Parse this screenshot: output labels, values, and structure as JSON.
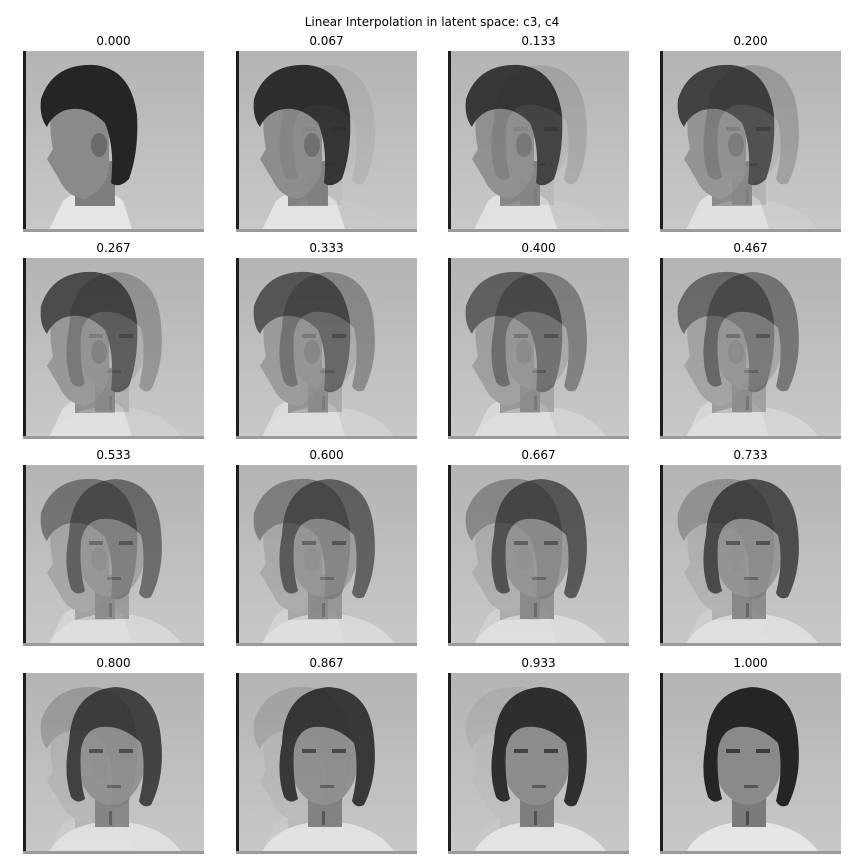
{
  "figure": {
    "title": "Linear Interpolation in latent space: c3, c4",
    "panels": [
      {
        "label": "0.000",
        "alpha": 0.0
      },
      {
        "label": "0.067",
        "alpha": 0.067
      },
      {
        "label": "0.133",
        "alpha": 0.133
      },
      {
        "label": "0.200",
        "alpha": 0.2
      },
      {
        "label": "0.267",
        "alpha": 0.267
      },
      {
        "label": "0.333",
        "alpha": 0.333
      },
      {
        "label": "0.400",
        "alpha": 0.4
      },
      {
        "label": "0.467",
        "alpha": 0.467
      },
      {
        "label": "0.533",
        "alpha": 0.533
      },
      {
        "label": "0.600",
        "alpha": 0.6
      },
      {
        "label": "0.667",
        "alpha": 0.667
      },
      {
        "label": "0.733",
        "alpha": 0.733
      },
      {
        "label": "0.800",
        "alpha": 0.8
      },
      {
        "label": "0.867",
        "alpha": 0.867
      },
      {
        "label": "0.933",
        "alpha": 0.933
      },
      {
        "label": "1.000",
        "alpha": 1.0
      }
    ],
    "colors": {
      "background_light": "#c8c8c8",
      "background_dark": "#b4b4b4",
      "hair": "#252525",
      "skin": "#8a8a8a",
      "shirt": "#e6e6e6",
      "left_edge": "#1e1e1e"
    }
  }
}
